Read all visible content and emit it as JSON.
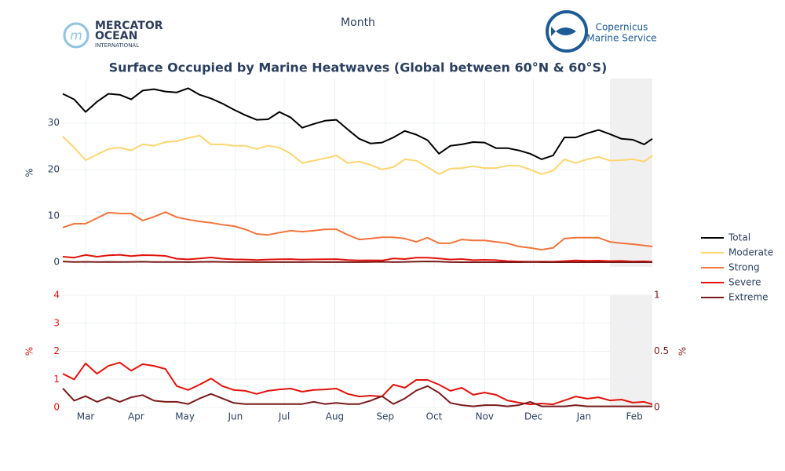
{
  "logos": {
    "mercator": [
      "MERCATOR",
      "OCEAN",
      "INTERNATIONAL"
    ],
    "copernicus": [
      "Copernicus",
      "Marine Service"
    ]
  },
  "chart_data": [
    {
      "type": "line",
      "title": "Surface Occupied by Marine Heatwaves (Global between 60°N & 60°S)",
      "xlabel": "Month",
      "ylabel": "%",
      "x": [
        -14,
        -7,
        0,
        7,
        14,
        21,
        28,
        35,
        42,
        49,
        56,
        63,
        70,
        77,
        84,
        91,
        98,
        105,
        112,
        119,
        126,
        133,
        140,
        147,
        154,
        161,
        168,
        175,
        182,
        189,
        196,
        203,
        210,
        217,
        224,
        231,
        238,
        245,
        252,
        259,
        266,
        273,
        280,
        287,
        294,
        301,
        308,
        315,
        322,
        329,
        336,
        343,
        348
      ],
      "xlim": [
        -14,
        348
      ],
      "ylim": [
        -1,
        39.6
      ],
      "yticks": [
        0,
        10,
        20,
        30
      ],
      "grid": true,
      "shaded_x": [
        322,
        348
      ],
      "series": [
        {
          "name": "Total",
          "color": "#000000",
          "values": [
            36.3,
            35.1,
            32.4,
            34.6,
            36.3,
            36.1,
            35.1,
            37,
            37.3,
            36.8,
            36.6,
            37.5,
            36.1,
            35.3,
            34.2,
            32.9,
            31.7,
            30.7,
            30.8,
            32.4,
            31.2,
            29,
            29.8,
            30.5,
            30.7,
            28.6,
            26.6,
            25.6,
            25.8,
            26.9,
            28.3,
            27.5,
            26.3,
            23.4,
            25.1,
            25.4,
            25.9,
            25.8,
            24.6,
            24.6,
            24.1,
            23.4,
            22.2,
            23,
            26.9,
            26.9,
            27.8,
            28.5,
            27.6,
            26.6,
            26.4,
            25.4,
            26.6
          ]
        },
        {
          "name": "Moderate",
          "color": "#fdd66e",
          "values": [
            27.1,
            24.7,
            22,
            23.2,
            24.4,
            24.7,
            24.1,
            25.4,
            25.1,
            25.9,
            26.1,
            26.8,
            27.3,
            25.4,
            25.4,
            25.1,
            25.1,
            24.4,
            25.1,
            24.7,
            23.4,
            21.4,
            21.9,
            22.4,
            23,
            21.4,
            21.7,
            21,
            20,
            20.5,
            22.2,
            21.9,
            20.5,
            19,
            20.2,
            20.3,
            20.7,
            20.3,
            20.3,
            20.8,
            20.8,
            20,
            19,
            19.7,
            22.2,
            21.4,
            22.2,
            22.7,
            21.9,
            22,
            22.2,
            21.7,
            23
          ]
        },
        {
          "name": "Strong",
          "color": "#f4743b",
          "values": [
            7.5,
            8.3,
            8.3,
            9.5,
            10.7,
            10.5,
            10.5,
            9,
            9.8,
            10.8,
            9.7,
            9.2,
            8.8,
            8.5,
            8.1,
            7.8,
            7.1,
            6.1,
            5.9,
            6.4,
            6.8,
            6.6,
            6.8,
            7.1,
            7.1,
            5.9,
            4.9,
            5.1,
            5.4,
            5.4,
            5.1,
            4.4,
            5.3,
            4.1,
            4.1,
            4.9,
            4.7,
            4.7,
            4.4,
            4.1,
            3.4,
            3.1,
            2.7,
            3.1,
            5.1,
            5.3,
            5.3,
            5.3,
            4.4,
            4.1,
            3.9,
            3.6,
            3.4
          ]
        },
        {
          "name": "Severe",
          "color": "#e3120b",
          "values": [
            1.2,
            1,
            1.57,
            1.2,
            1.48,
            1.6,
            1.31,
            1.54,
            1.48,
            1.37,
            0.76,
            0.62,
            0.81,
            1.03,
            0.76,
            0.62,
            0.59,
            0.48,
            0.59,
            0.64,
            0.67,
            0.56,
            0.62,
            0.64,
            0.67,
            0.48,
            0.39,
            0.42,
            0.39,
            0.81,
            0.7,
            0.98,
            0.98,
            0.81,
            0.59,
            0.7,
            0.45,
            0.53,
            0.45,
            0.25,
            0.17,
            0.11,
            0.14,
            0.11,
            0.25,
            0.39,
            0.31,
            0.36,
            0.25,
            0.28,
            0.17,
            0.2,
            0.11
          ]
        },
        {
          "name": "Extreme",
          "color": "#7b1a1a",
          "values": [
            0.17,
            0.06,
            0.1,
            0.05,
            0.09,
            0.05,
            0.09,
            0.11,
            0.06,
            0.05,
            0.05,
            0.03,
            0.08,
            0.12,
            0.08,
            0.04,
            0.03,
            0.03,
            0.03,
            0.03,
            0.03,
            0.03,
            0.05,
            0.03,
            0.04,
            0.03,
            0.03,
            0.06,
            0.1,
            0.03,
            0.08,
            0.15,
            0.19,
            0.13,
            0.04,
            0.02,
            0.01,
            0.02,
            0.02,
            0.01,
            0.02,
            0.05,
            0.01,
            0.01,
            0.01,
            0.02,
            0.01,
            0.01,
            0.01,
            0.01,
            0.01,
            0.01,
            0.01
          ]
        }
      ]
    },
    {
      "type": "line",
      "ylabel": "%",
      "y2label": "%",
      "x": [
        -14,
        -7,
        0,
        7,
        14,
        21,
        28,
        35,
        42,
        49,
        56,
        63,
        70,
        77,
        84,
        91,
        98,
        105,
        112,
        119,
        126,
        133,
        140,
        147,
        154,
        161,
        168,
        175,
        182,
        189,
        196,
        203,
        210,
        217,
        224,
        231,
        238,
        245,
        252,
        259,
        266,
        273,
        280,
        287,
        294,
        301,
        308,
        315,
        322,
        329,
        336,
        343,
        348
      ],
      "xlim": [
        -14,
        348
      ],
      "ylim": [
        0,
        4
      ],
      "yticks": [
        0,
        1,
        2,
        3,
        4
      ],
      "y2lim": [
        0,
        1
      ],
      "y2ticks": [
        0,
        0.5,
        1
      ],
      "grid": true,
      "shaded_x": [
        322,
        348
      ],
      "xticks": [
        {
          "value": 0,
          "label": "Mar"
        },
        {
          "value": 31,
          "label": "Apr"
        },
        {
          "value": 61,
          "label": "May"
        },
        {
          "value": 92,
          "label": "Jun"
        },
        {
          "value": 122,
          "label": "Jul"
        },
        {
          "value": 153,
          "label": "Aug"
        },
        {
          "value": 184,
          "label": "Sep"
        },
        {
          "value": 214,
          "label": "Oct"
        },
        {
          "value": 245,
          "label": "Nov"
        },
        {
          "value": 275,
          "label": "Dec"
        },
        {
          "value": 306,
          "label": "Jan"
        },
        {
          "value": 337,
          "label": "Feb"
        }
      ],
      "series": [
        {
          "color": "#e3120b",
          "values": [
            1.2,
            1,
            1.57,
            1.2,
            1.48,
            1.6,
            1.31,
            1.54,
            1.48,
            1.37,
            0.76,
            0.62,
            0.81,
            1.03,
            0.76,
            0.62,
            0.59,
            0.48,
            0.59,
            0.64,
            0.67,
            0.56,
            0.62,
            0.64,
            0.67,
            0.48,
            0.39,
            0.42,
            0.39,
            0.81,
            0.7,
            0.98,
            0.98,
            0.81,
            0.59,
            0.7,
            0.45,
            0.53,
            0.45,
            0.25,
            0.17,
            0.11,
            0.14,
            0.11,
            0.25,
            0.39,
            0.31,
            0.36,
            0.25,
            0.28,
            0.17,
            0.2,
            0.11
          ]
        },
        {
          "color": "#7b1a1a",
          "axis": "y2",
          "values": [
            0.17,
            0.06,
            0.1,
            0.05,
            0.09,
            0.05,
            0.09,
            0.11,
            0.06,
            0.05,
            0.05,
            0.03,
            0.08,
            0.12,
            0.08,
            0.04,
            0.03,
            0.03,
            0.03,
            0.03,
            0.03,
            0.03,
            0.05,
            0.03,
            0.04,
            0.03,
            0.03,
            0.06,
            0.1,
            0.03,
            0.08,
            0.15,
            0.19,
            0.13,
            0.04,
            0.02,
            0.01,
            0.02,
            0.02,
            0.01,
            0.02,
            0.05,
            0.01,
            0.01,
            0.01,
            0.02,
            0.01,
            0.01,
            0.01,
            0.01,
            0.01,
            0.01,
            0.01
          ]
        }
      ]
    }
  ]
}
